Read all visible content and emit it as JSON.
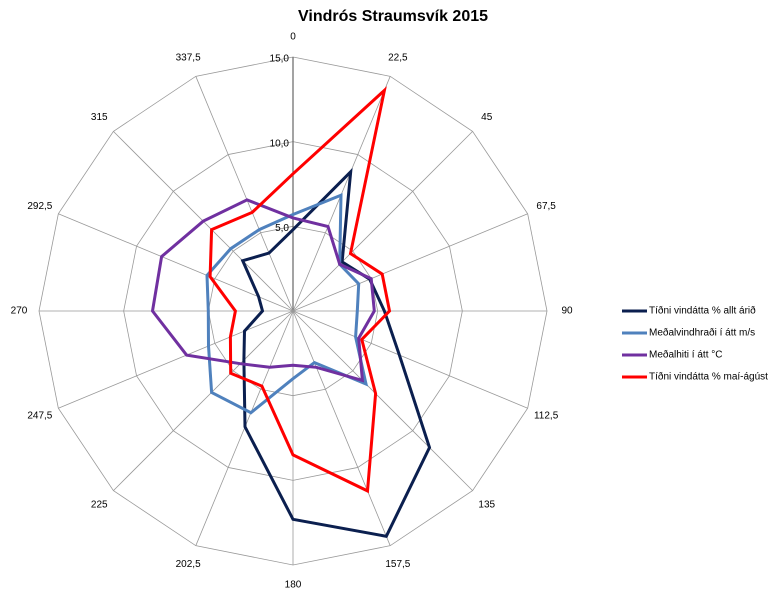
{
  "chart_data": {
    "type": "radar",
    "title": "Vindrós Straumsvík 2015",
    "categories": [
      "0",
      "22,5",
      "45",
      "67,5",
      "90",
      "112,5",
      "135",
      "157,5",
      "180",
      "202,5",
      "225",
      "247,5",
      "270",
      "292,5",
      "315",
      "337,5"
    ],
    "ylim": [
      0,
      15
    ],
    "yticks": [
      {
        "value": 5,
        "label": "5,0"
      },
      {
        "value": 10,
        "label": "10,0"
      },
      {
        "value": 15,
        "label": "15,0"
      }
    ],
    "grid": true,
    "legend": "right",
    "series": [
      {
        "name": "Tíðni vindátta % allt árið",
        "color": "#0b1f4f",
        "values": [
          4.8,
          8.9,
          4.1,
          4.9,
          5.4,
          6.8,
          11.4,
          14.4,
          12.3,
          7.4,
          4.1,
          3.1,
          1.8,
          2.2,
          4.2,
          3.7
        ]
      },
      {
        "name": "Meðalvindhraði í átt m/s",
        "color": "#4f81bd",
        "values": [
          5.7,
          7.4,
          3.9,
          4.2,
          3.8,
          4.0,
          6.1,
          3.3,
          4.0,
          6.5,
          6.8,
          5.4,
          5.0,
          5.5,
          5.2,
          5.2
        ]
      },
      {
        "name": "Meðalhiti í átt °C",
        "color": "#7030a0",
        "values": [
          5.5,
          5.4,
          3.9,
          5.0,
          4.8,
          4.2,
          5.8,
          3.6,
          3.2,
          3.6,
          4.4,
          6.8,
          8.3,
          8.4,
          7.5,
          7.1
        ]
      },
      {
        "name": "Tíðni vindátta % maí-ágúst",
        "color": "#ff0000",
        "values": [
          8.1,
          14.1,
          4.8,
          5.7,
          5.7,
          4.4,
          6.9,
          11.5,
          8.5,
          4.8,
          5.2,
          4.0,
          3.4,
          5.3,
          6.8,
          6.3
        ]
      }
    ]
  }
}
